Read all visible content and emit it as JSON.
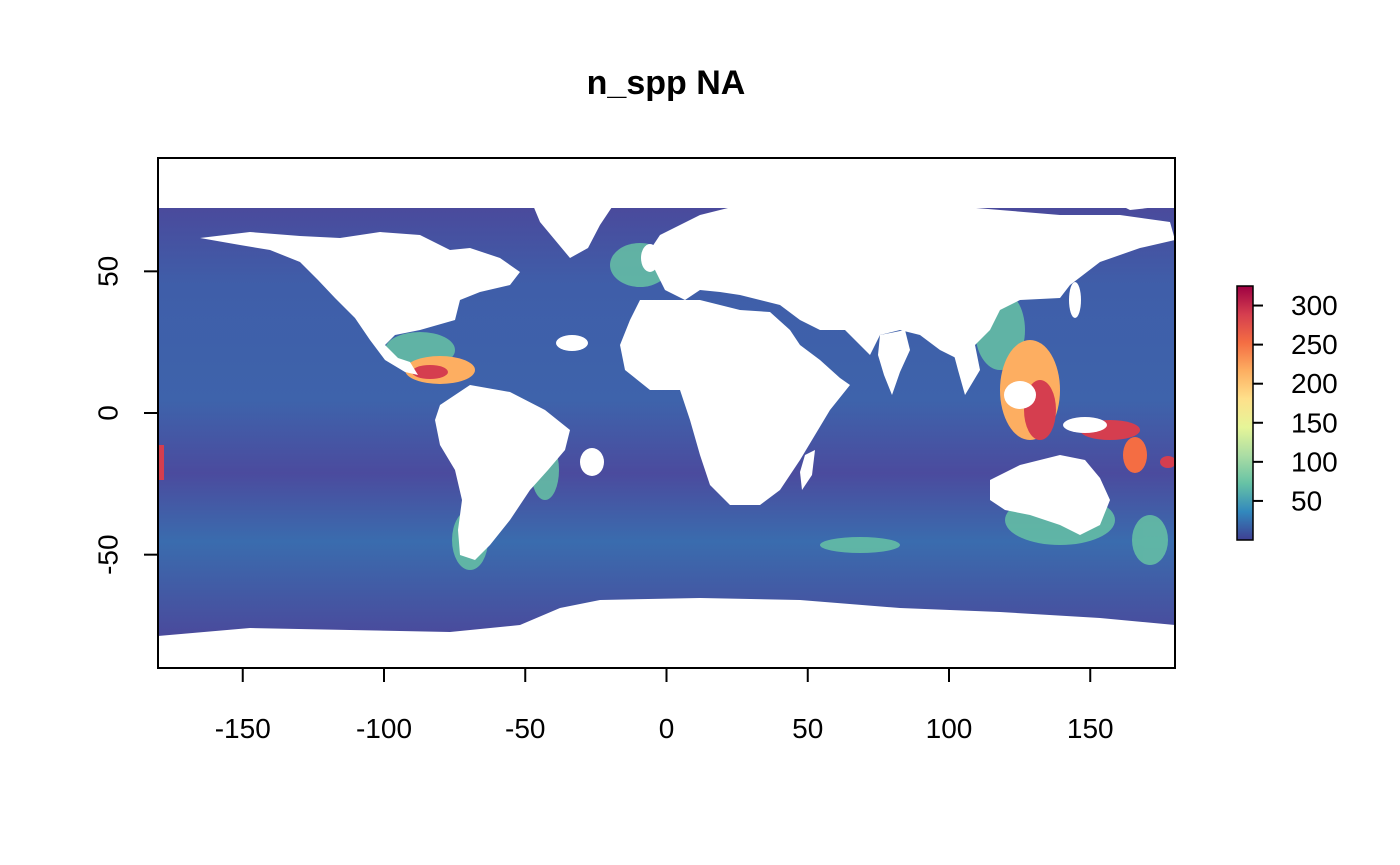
{
  "title": "n_spp NA",
  "chart_data": {
    "type": "heatmap",
    "title": "n_spp NA",
    "xlabel": "",
    "ylabel": "",
    "xlim": [
      -180,
      180
    ],
    "ylim": [
      -90,
      90
    ],
    "x_ticks": [
      -150,
      -100,
      -50,
      0,
      50,
      100,
      150
    ],
    "x_tick_labels": [
      "-150",
      "-100",
      "-50",
      "0",
      "50",
      "100",
      "150"
    ],
    "y_ticks": [
      50,
      0,
      -50
    ],
    "y_tick_labels": [
      "50",
      "0",
      "-50"
    ],
    "legend": {
      "position": "right",
      "range": [
        0,
        325
      ],
      "ticks": [
        50,
        100,
        150,
        200,
        250,
        300
      ],
      "tick_labels": [
        "50",
        "100",
        "150",
        "200",
        "250",
        "300"
      ],
      "colors": [
        "#3f3f93",
        "#3288bd",
        "#66c2a5",
        "#abdda4",
        "#e6f598",
        "#fee08b",
        "#fdae61",
        "#f46d43",
        "#d53e4f",
        "#9e0142"
      ]
    },
    "colors": {
      "ocean_low": "#4a4a9c",
      "ocean_mid": "#3a6fb0",
      "shelf": "#66c2a5",
      "hotspot_mid": "#fdae61",
      "hotspot_high": "#d53e4f",
      "land": "#ffffff"
    }
  }
}
